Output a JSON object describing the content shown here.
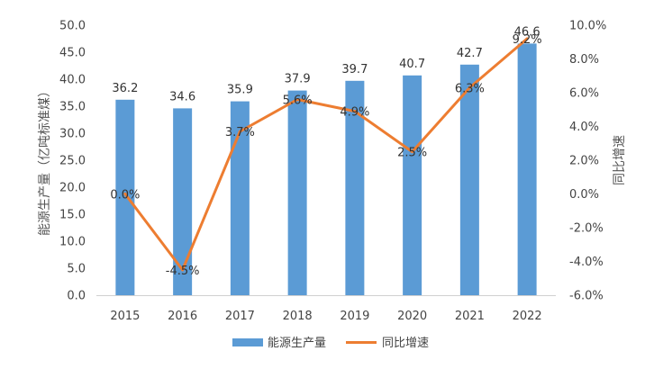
{
  "chart_data": {
    "type": "bar",
    "title": "",
    "categories": [
      "2015",
      "2016",
      "2017",
      "2018",
      "2019",
      "2020",
      "2021",
      "2022"
    ],
    "y_left_label": "能源生产量（亿吨标准煤）",
    "y_right_label": "同比增速",
    "y_left_ticks": [
      "0.0",
      "5.0",
      "10.0",
      "15.0",
      "20.0",
      "25.0",
      "30.0",
      "35.0",
      "40.0",
      "45.0",
      "50.0"
    ],
    "y_right_ticks": [
      "-6.0%",
      "-4.0%",
      "-2.0%",
      "0.0%",
      "2.0%",
      "4.0%",
      "6.0%",
      "8.0%",
      "10.0%"
    ],
    "ylim_left": [
      0,
      50
    ],
    "ylim_right": [
      -6,
      10
    ],
    "grid": false,
    "legend_position": "bottom",
    "series": [
      {
        "name": "能源生产量",
        "type": "bar",
        "axis": "left",
        "color": "#5B9BD5",
        "values": [
          36.2,
          34.6,
          35.9,
          37.9,
          39.7,
          40.7,
          42.7,
          46.6
        ],
        "labels": [
          "36.2",
          "34.6",
          "35.9",
          "37.9",
          "39.7",
          "40.7",
          "42.7",
          "46.6"
        ]
      },
      {
        "name": "同比增速",
        "type": "line",
        "axis": "right",
        "color": "#ED7D31",
        "values": [
          0.0,
          -4.5,
          3.7,
          5.6,
          4.9,
          2.5,
          6.3,
          9.2
        ],
        "labels": [
          "0.0%",
          "-4.5%",
          "3.7%",
          "5.6%",
          "4.9%",
          "2.5%",
          "6.3%",
          "9.2%"
        ]
      }
    ]
  }
}
